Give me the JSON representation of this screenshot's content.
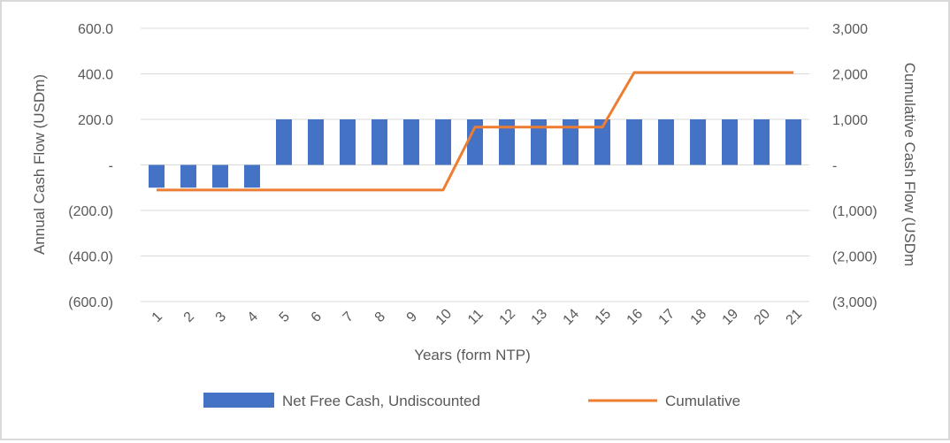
{
  "chart_data": {
    "type": "bar",
    "categories": [
      "1",
      "2",
      "3",
      "4",
      "5",
      "6",
      "7",
      "8",
      "9",
      "10",
      "11",
      "12",
      "13",
      "14",
      "15",
      "16",
      "17",
      "18",
      "19",
      "20",
      "21"
    ],
    "series": [
      {
        "name": "Net Free Cash, Undiscounted",
        "type": "bar",
        "axis": "left",
        "color": "#4472C4",
        "values": [
          -100,
          -100,
          -100,
          -100,
          200,
          200,
          200,
          200,
          200,
          200,
          200,
          200,
          200,
          200,
          200,
          200,
          200,
          200,
          200,
          200,
          200
        ]
      },
      {
        "name": "Cumulative",
        "type": "line",
        "axis": "right",
        "color": "#ED7D31",
        "values": [
          -550,
          -550,
          -550,
          -550,
          -550,
          -550,
          -550,
          -550,
          -550,
          -550,
          830,
          830,
          830,
          830,
          830,
          2030,
          2030,
          2030,
          2030,
          2030,
          2030
        ]
      }
    ],
    "xlabel": "Years (form NTP)",
    "ylabel": "Annual Cash Flow (USDm)",
    "y2label": "Cumulative Cash Flow (USDm",
    "ylim": [
      -600,
      600
    ],
    "y2lim": [
      -3000,
      3000
    ],
    "yticks": [
      "600.0",
      "400.0",
      "200.0",
      "-",
      "(200.0)",
      "(400.0)",
      "(600.0)"
    ],
    "y2ticks": [
      "3,000",
      "2,000",
      "1,000",
      "-",
      "(1,000)",
      "(2,000)",
      "(3,000)"
    ],
    "grid": true,
    "legend": "bottom"
  }
}
